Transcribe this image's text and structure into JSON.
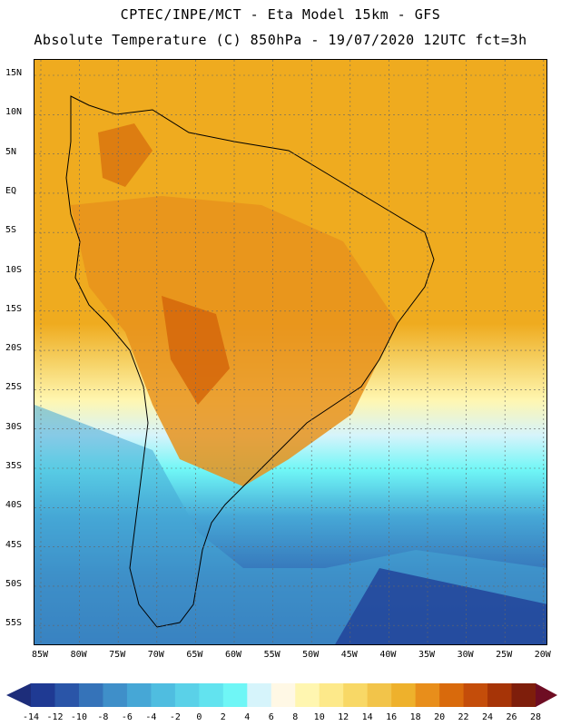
{
  "header": {
    "line1": "CPTEC/INPE/MCT -  Eta Model 15km - GFS",
    "line2": "Absolute Temperature (C) 850hPa - 19/07/2020 12UTC fct=3h"
  },
  "map": {
    "lat_labels": [
      "15N",
      "10N",
      "5N",
      "EQ",
      "5S",
      "10S",
      "15S",
      "20S",
      "25S",
      "30S",
      "35S",
      "40S",
      "45S",
      "50S",
      "55S"
    ],
    "lon_labels": [
      "85W",
      "80W",
      "75W",
      "70W",
      "65W",
      "60W",
      "55W",
      "50W",
      "45W",
      "40W",
      "35W",
      "30W",
      "25W",
      "20W"
    ]
  },
  "colorbar": {
    "labels": [
      "-14",
      "-12",
      "-10",
      "-8",
      "-6",
      "-4",
      "-2",
      "0",
      "2",
      "4",
      "6",
      "8",
      "10",
      "12",
      "14",
      "16",
      "18",
      "20",
      "22",
      "24",
      "26",
      "28"
    ],
    "colors": [
      "#1f3a93",
      "#2a55a8",
      "#3573b9",
      "#3f8fc9",
      "#46a7d6",
      "#4fbde0",
      "#5ad1e8",
      "#62e3ef",
      "#6ff6f6",
      "#d6f4fb",
      "#fff8e5",
      "#fff6b0",
      "#fde98a",
      "#f8d866",
      "#f2c44a",
      "#eeb12c",
      "#e88e1b",
      "#d96a0c",
      "#c44d0a",
      "#a63407",
      "#7e1e0b"
    ],
    "left_arrow_color": "#1d2d7a",
    "right_arrow_color": "#6e0d23"
  },
  "palette": {
    "ocean_warm": "#efab1f",
    "land_warm": "#e8921c",
    "hot": "#d6690c",
    "yellow": "#fde98a",
    "cream": "#fff8e5",
    "cyan": "#6ff6f6",
    "mid_blue": "#46a7d6",
    "deep_blue": "#2a55a8"
  }
}
